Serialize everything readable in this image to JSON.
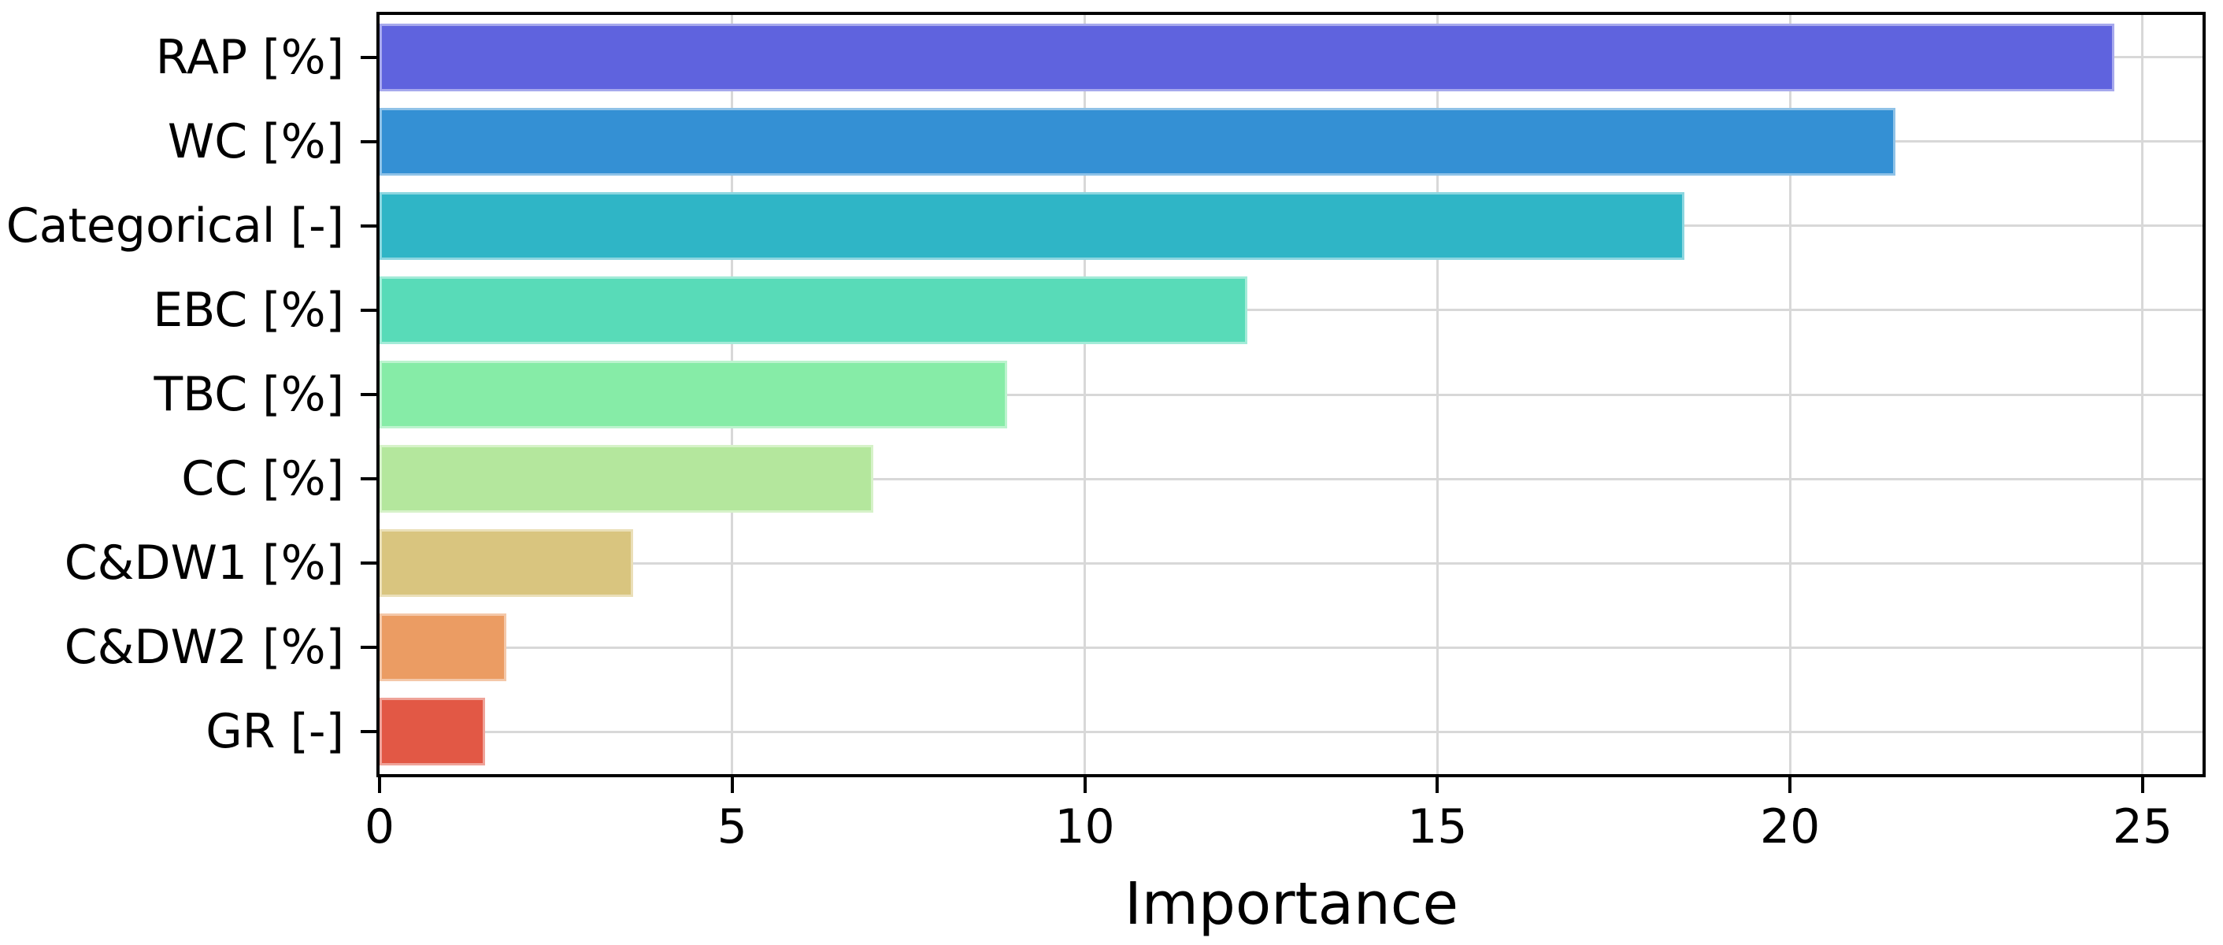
{
  "chart_data": {
    "type": "bar",
    "orientation": "horizontal",
    "title": "",
    "xlabel": "Importance",
    "ylabel": "",
    "categories": [
      "RAP [%]",
      "WC [%]",
      "Categorical [-]",
      "EBC [%]",
      "TBC [%]",
      "CC [%]",
      "C&DW1 [%]",
      "C&DW2 [%]",
      "GR [-]"
    ],
    "values": [
      24.6,
      21.5,
      18.5,
      12.3,
      8.9,
      7.0,
      3.6,
      1.8,
      1.5
    ],
    "bar_colors": [
      "#5F63DE",
      "#3490D4",
      "#2FB5C6",
      "#58DBB8",
      "#86ECA7",
      "#B4E79D",
      "#D9C57F",
      "#EB9C63",
      "#E25845"
    ],
    "xlim": [
      0,
      25.85
    ],
    "xticks": [
      "0",
      "5",
      "10",
      "15",
      "20",
      "25"
    ],
    "xtick_values": [
      0,
      5,
      10,
      15,
      20,
      25
    ],
    "grid": true,
    "legend": false,
    "grid_color": "#d8d8d8",
    "axis_color": "#000000"
  }
}
